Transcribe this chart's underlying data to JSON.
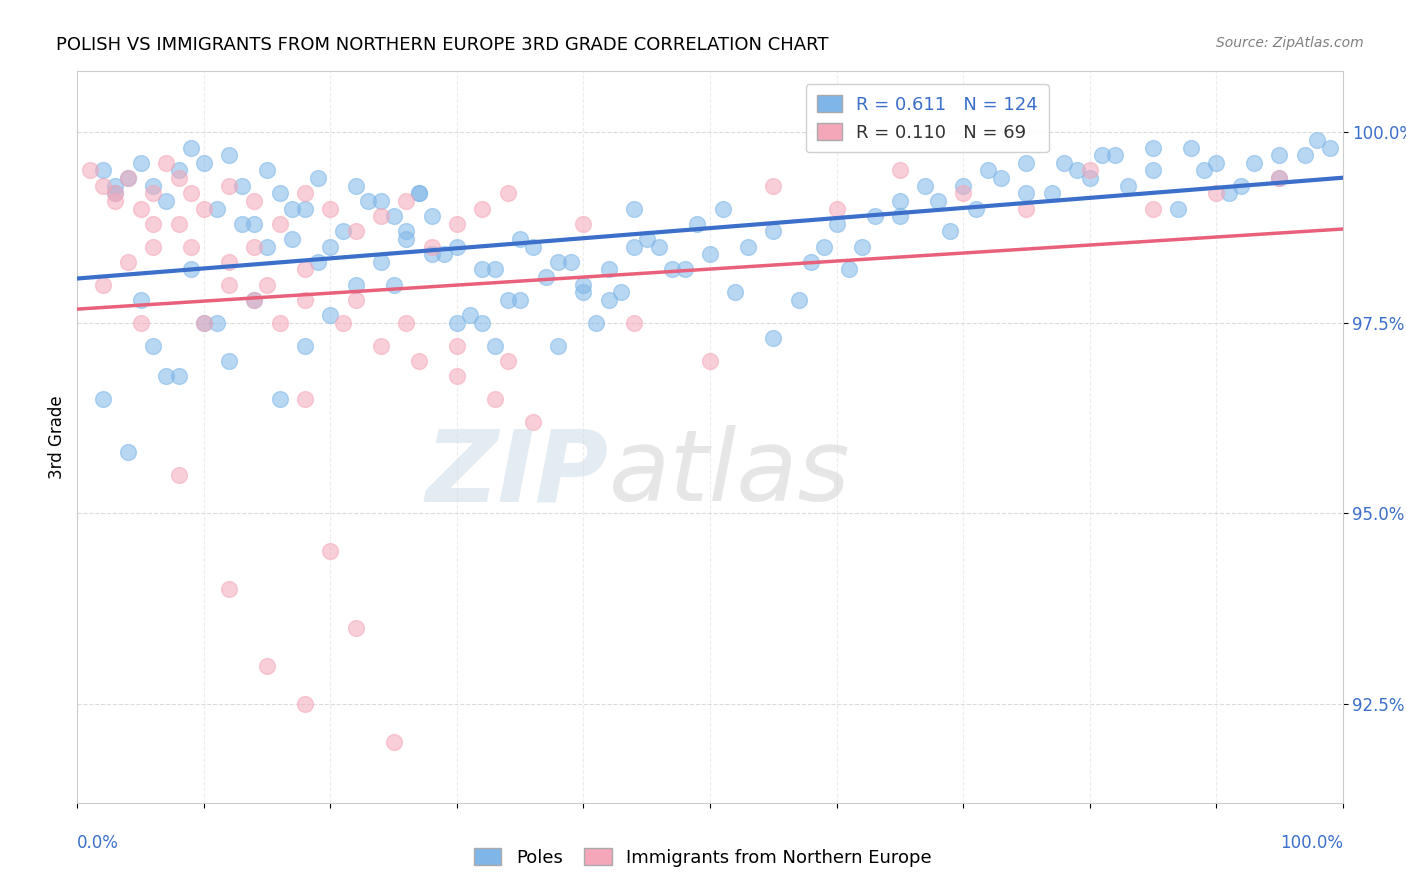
{
  "title": "POLISH VS IMMIGRANTS FROM NORTHERN EUROPE 3RD GRADE CORRELATION CHART",
  "source": "Source: ZipAtlas.com",
  "ylabel": "3rd Grade",
  "y_ticks": [
    92.5,
    95.0,
    97.5,
    100.0
  ],
  "y_tick_labels": [
    "92.5%",
    "95.0%",
    "97.5%",
    "100.0%"
  ],
  "xmin": 0.0,
  "xmax": 1.0,
  "ymin": 91.2,
  "ymax": 100.8,
  "blue_color": "#7EB6E8",
  "pink_color": "#F4A7B9",
  "blue_line_color": "#3B6FC9",
  "pink_line_color": "#E8607A",
  "R_blue": 0.611,
  "N_blue": 124,
  "R_pink": 0.11,
  "N_pink": 69,
  "legend_labels": [
    "Poles",
    "Immigrants from Northern Europe"
  ],
  "blue_scatter_x": [
    0.02,
    0.03,
    0.04,
    0.05,
    0.06,
    0.07,
    0.08,
    0.09,
    0.1,
    0.11,
    0.12,
    0.13,
    0.14,
    0.15,
    0.16,
    0.17,
    0.18,
    0.19,
    0.2,
    0.22,
    0.24,
    0.25,
    0.26,
    0.27,
    0.28,
    0.3,
    0.32,
    0.33,
    0.35,
    0.38,
    0.4,
    0.42,
    0.44,
    0.46,
    0.48,
    0.5,
    0.52,
    0.55,
    0.58,
    0.6,
    0.62,
    0.65,
    0.68,
    0.7,
    0.72,
    0.75,
    0.78,
    0.8,
    0.82,
    0.85,
    0.88,
    0.9,
    0.92,
    0.95,
    0.98,
    0.03,
    0.05,
    0.07,
    0.09,
    0.11,
    0.13,
    0.15,
    0.17,
    0.19,
    0.21,
    0.23,
    0.25,
    0.27,
    0.29,
    0.31,
    0.33,
    0.35,
    0.37,
    0.39,
    0.41,
    0.43,
    0.45,
    0.47,
    0.49,
    0.51,
    0.53,
    0.55,
    0.57,
    0.59,
    0.61,
    0.63,
    0.65,
    0.67,
    0.69,
    0.71,
    0.73,
    0.75,
    0.77,
    0.79,
    0.81,
    0.83,
    0.85,
    0.87,
    0.89,
    0.91,
    0.93,
    0.95,
    0.97,
    0.99,
    0.02,
    0.04,
    0.06,
    0.08,
    0.1,
    0.12,
    0.14,
    0.16,
    0.18,
    0.2,
    0.22,
    0.24,
    0.26,
    0.28,
    0.3,
    0.32,
    0.34,
    0.36,
    0.38,
    0.4,
    0.42,
    0.44
  ],
  "blue_scatter_y": [
    99.5,
    99.2,
    99.4,
    99.6,
    99.3,
    99.1,
    99.5,
    99.8,
    99.6,
    99.0,
    99.7,
    99.3,
    98.8,
    99.5,
    99.2,
    98.6,
    99.0,
    99.4,
    98.5,
    99.3,
    99.1,
    98.0,
    98.7,
    99.2,
    98.4,
    98.5,
    97.5,
    98.2,
    98.6,
    98.3,
    98.0,
    97.8,
    99.0,
    98.5,
    98.2,
    98.4,
    97.9,
    98.7,
    98.3,
    98.8,
    98.5,
    98.9,
    99.1,
    99.3,
    99.5,
    99.2,
    99.6,
    99.4,
    99.7,
    99.5,
    99.8,
    99.6,
    99.3,
    99.7,
    99.9,
    99.3,
    97.8,
    96.8,
    98.2,
    97.5,
    98.8,
    98.5,
    99.0,
    98.3,
    98.7,
    99.1,
    98.9,
    99.2,
    98.4,
    97.6,
    97.2,
    97.8,
    98.1,
    98.3,
    97.5,
    97.9,
    98.6,
    98.2,
    98.8,
    99.0,
    98.5,
    97.3,
    97.8,
    98.5,
    98.2,
    98.9,
    99.1,
    99.3,
    98.7,
    99.0,
    99.4,
    99.6,
    99.2,
    99.5,
    99.7,
    99.3,
    99.8,
    99.0,
    99.5,
    99.2,
    99.6,
    99.4,
    99.7,
    99.8,
    96.5,
    95.8,
    97.2,
    96.8,
    97.5,
    97.0,
    97.8,
    96.5,
    97.2,
    97.6,
    98.0,
    98.3,
    98.6,
    98.9,
    97.5,
    98.2,
    97.8,
    98.5,
    97.2,
    97.9,
    98.2,
    98.5
  ],
  "pink_scatter_x": [
    0.01,
    0.02,
    0.03,
    0.04,
    0.05,
    0.06,
    0.07,
    0.08,
    0.09,
    0.1,
    0.12,
    0.14,
    0.16,
    0.18,
    0.2,
    0.22,
    0.24,
    0.26,
    0.28,
    0.3,
    0.32,
    0.34,
    0.02,
    0.04,
    0.06,
    0.08,
    0.1,
    0.12,
    0.14,
    0.16,
    0.18,
    0.2,
    0.05,
    0.08,
    0.12,
    0.15,
    0.18,
    0.22,
    0.25,
    0.03,
    0.06,
    0.09,
    0.12,
    0.15,
    0.18,
    0.21,
    0.24,
    0.27,
    0.3,
    0.33,
    0.36,
    0.4,
    0.44,
    0.5,
    0.55,
    0.6,
    0.65,
    0.7,
    0.75,
    0.8,
    0.85,
    0.9,
    0.95,
    0.14,
    0.18,
    0.22,
    0.26,
    0.3,
    0.34
  ],
  "pink_scatter_y": [
    99.5,
    99.3,
    99.1,
    99.4,
    99.0,
    99.2,
    99.6,
    99.4,
    99.2,
    99.0,
    99.3,
    99.1,
    98.8,
    99.2,
    99.0,
    98.7,
    98.9,
    99.1,
    98.5,
    98.8,
    99.0,
    99.2,
    98.0,
    98.3,
    98.5,
    98.8,
    97.5,
    98.0,
    97.8,
    97.5,
    96.5,
    94.5,
    97.5,
    95.5,
    94.0,
    93.0,
    92.5,
    93.5,
    92.0,
    99.2,
    98.8,
    98.5,
    98.3,
    98.0,
    97.8,
    97.5,
    97.2,
    97.0,
    96.8,
    96.5,
    96.2,
    98.8,
    97.5,
    97.0,
    99.3,
    99.0,
    99.5,
    99.2,
    99.0,
    99.5,
    99.0,
    99.2,
    99.4,
    98.5,
    98.2,
    97.8,
    97.5,
    97.2,
    97.0
  ]
}
